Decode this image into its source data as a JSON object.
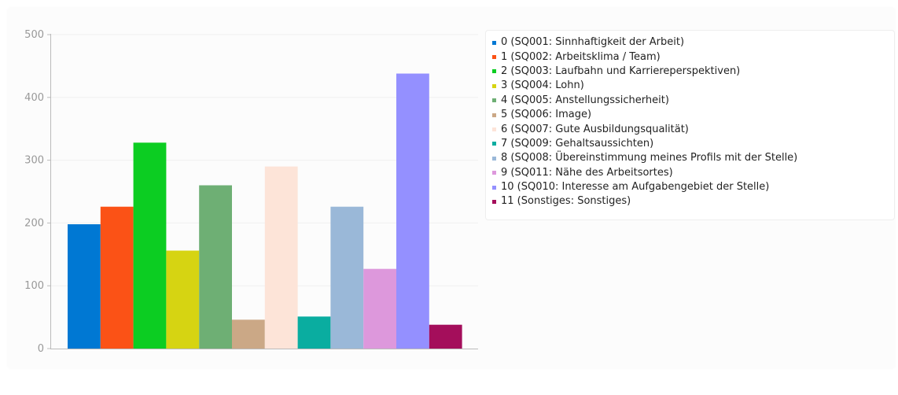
{
  "chart_data": {
    "type": "bar",
    "ylim": [
      0,
      500
    ],
    "yticks": [
      "0",
      "100",
      "200",
      "300",
      "400",
      "500"
    ],
    "grid": "horizontal",
    "legend_position": "right",
    "series": [
      {
        "name": "0 (SQ001: Sinnhaftigkeit der Arbeit)",
        "value": 198,
        "color": "#0078d3"
      },
      {
        "name": "1 (SQ002: Arbeitsklima / Team)",
        "value": 226,
        "color": "#fb5216"
      },
      {
        "name": "2 (SQ003: Laufbahn und Karriereperspektiven)",
        "value": 328,
        "color": "#0ccd22"
      },
      {
        "name": "3 (SQ004: Lohn)",
        "value": 156,
        "color": "#d6d412"
      },
      {
        "name": "4 (SQ005: Anstellungssicherheit)",
        "value": 260,
        "color": "#6eaf74"
      },
      {
        "name": "5 (SQ006: Image)",
        "value": 46,
        "color": "#cba886"
      },
      {
        "name": "6 (SQ007: Gute Ausbildungsqualität)",
        "value": 290,
        "color": "#fde4d8"
      },
      {
        "name": "7 (SQ009: Gehaltsaussichten)",
        "value": 51,
        "color": "#0aada0"
      },
      {
        "name": "8 (SQ008: Übereinstimmung meines Profils mit der Stelle)",
        "value": 226,
        "color": "#9ab8d8"
      },
      {
        "name": "9 (SQ011: Nähe des Arbeitsortes)",
        "value": 127,
        "color": "#dd98dc"
      },
      {
        "name": "10 (SQ010: Interesse am Aufgabengebiet der Stelle)",
        "value": 438,
        "color": "#9490ff"
      },
      {
        "name": "11 (Sonstiges: Sonstiges)",
        "value": 38,
        "color": "#a40e5b"
      }
    ]
  }
}
